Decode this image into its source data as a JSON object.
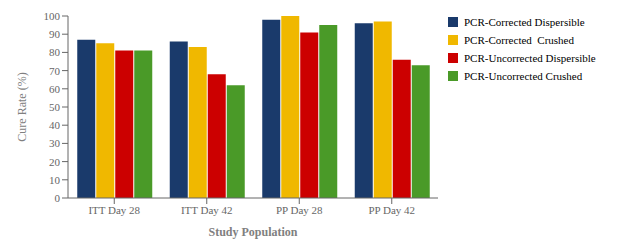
{
  "chart_data": {
    "type": "bar",
    "categories": [
      "ITT Day 28",
      "ITT Day 42",
      "PP Day 28",
      "PP Day 42"
    ],
    "series": [
      {
        "name": "PCR-Corrected Dispersible",
        "color": "#1a3a6b",
        "values": [
          87,
          86,
          98,
          96
        ]
      },
      {
        "name": "PCR-Corrected  Crushed",
        "color": "#f0b800",
        "values": [
          85,
          83,
          100,
          97
        ]
      },
      {
        "name": "PCR-Uncorrected Dispersible",
        "color": "#cc0000",
        "values": [
          81,
          68,
          91,
          76
        ]
      },
      {
        "name": "PCR-Uncorrected Crushed",
        "color": "#4a9a28",
        "values": [
          81,
          62,
          95,
          73
        ]
      }
    ],
    "ylim": [
      0,
      100
    ],
    "yticks": [
      0,
      10,
      20,
      30,
      40,
      50,
      60,
      70,
      80,
      90,
      100
    ],
    "ylabel": "Cure Rate (%)",
    "xlabel": "Study Population",
    "grid": false,
    "legend": "right"
  }
}
